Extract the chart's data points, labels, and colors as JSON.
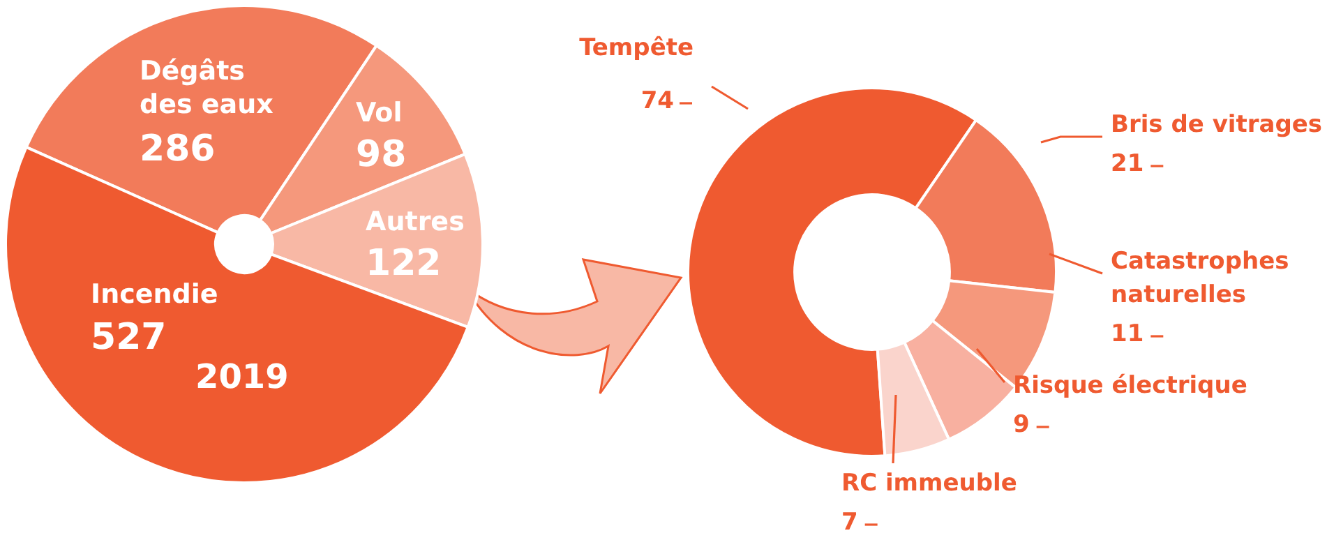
{
  "chart_data": [
    {
      "type": "pie",
      "categories": [
        "Dégâts des eaux",
        "Vol",
        "Autres",
        "Incendie"
      ],
      "values": [
        286,
        98,
        122,
        527
      ],
      "colors": [
        "#f27b5a",
        "#f5987c",
        "#f8b8a5",
        "#ef5a30"
      ],
      "data_labels": true,
      "legend": false,
      "annotations": [
        "2019"
      ]
    },
    {
      "type": "donut",
      "categories": [
        "Tempête",
        "Bris de vitrages",
        "Catastrophes naturelles",
        "Risque électrique",
        "RC immeuble"
      ],
      "values": [
        74,
        21,
        11,
        9,
        7
      ],
      "colors": [
        "#ef5a30",
        "#f27b5a",
        "#f5987c",
        "#f8b0a0",
        "#fad4cc"
      ],
      "data_labels": true,
      "legend": false
    }
  ]
}
